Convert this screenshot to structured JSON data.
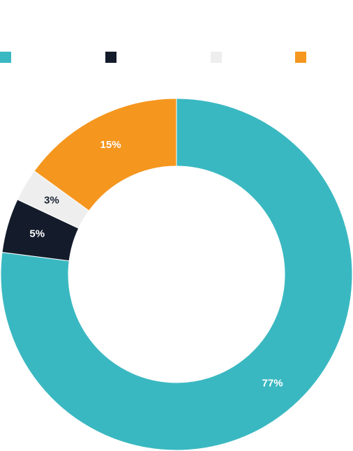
{
  "chart_data": {
    "type": "pie",
    "donut": true,
    "title": "",
    "legend_position": "top",
    "categories": [
      "",
      "",
      "",
      ""
    ],
    "values": [
      77,
      5,
      3,
      15
    ],
    "labels": [
      "77%",
      "5%",
      "3%",
      "15%"
    ],
    "colors": [
      "#3ab8c1",
      "#141c2b",
      "#eeeeee",
      "#f5961e"
    ],
    "label_colors": [
      "#ffffff",
      "#ffffff",
      "#1b2433",
      "#ffffff"
    ]
  }
}
